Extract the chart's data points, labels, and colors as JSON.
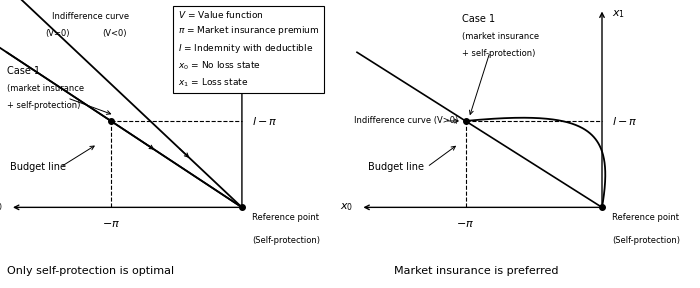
{
  "legend_lines": [
    "V = Value function",
    "π = Market insurance premium",
    "I = Indemnity with deductible",
    "x₀ = No loss state",
    "x₁ = Loss state"
  ],
  "left_title": "Only self-protection is optimal",
  "right_title": "Market insurance is preferred",
  "background": "#ffffff",
  "text_color": "#000000"
}
